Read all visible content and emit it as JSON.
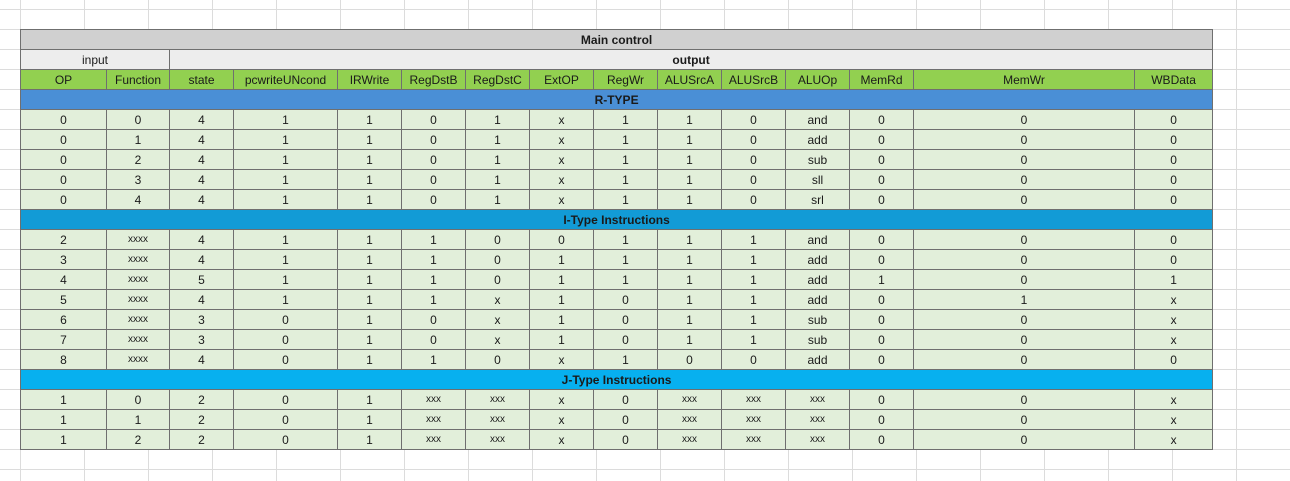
{
  "title": "Main control",
  "groups": {
    "input": "input",
    "output": "output"
  },
  "columns": [
    "OP",
    "Function",
    "state",
    "pcwriteUNcond",
    "IRWrite",
    "RegDstB",
    "RegDstC",
    "ExtOP",
    "RegWr",
    "ALUSrcA",
    "ALUSrcB",
    "ALUOp",
    "MemRd",
    "MemWr",
    "WBData"
  ],
  "sections": [
    {
      "name": "R-TYPE",
      "rows": [
        [
          "0",
          "0",
          "4",
          "1",
          "1",
          "0",
          "1",
          "x",
          "1",
          "1",
          "0",
          "and",
          "0",
          "0",
          "0"
        ],
        [
          "0",
          "1",
          "4",
          "1",
          "1",
          "0",
          "1",
          "x",
          "1",
          "1",
          "0",
          "add",
          "0",
          "0",
          "0"
        ],
        [
          "0",
          "2",
          "4",
          "1",
          "1",
          "0",
          "1",
          "x",
          "1",
          "1",
          "0",
          "sub",
          "0",
          "0",
          "0"
        ],
        [
          "0",
          "3",
          "4",
          "1",
          "1",
          "0",
          "1",
          "x",
          "1",
          "1",
          "0",
          "sll",
          "0",
          "0",
          "0"
        ],
        [
          "0",
          "4",
          "4",
          "1",
          "1",
          "0",
          "1",
          "x",
          "1",
          "1",
          "0",
          "srl",
          "0",
          "0",
          "0"
        ]
      ]
    },
    {
      "name": "I-Type Instructions",
      "rows": [
        [
          "2",
          "xxxx",
          "4",
          "1",
          "1",
          "1",
          "0",
          "0",
          "1",
          "1",
          "1",
          "and",
          "0",
          "0",
          "0"
        ],
        [
          "3",
          "xxxx",
          "4",
          "1",
          "1",
          "1",
          "0",
          "1",
          "1",
          "1",
          "1",
          "add",
          "0",
          "0",
          "0"
        ],
        [
          "4",
          "xxxx",
          "5",
          "1",
          "1",
          "1",
          "0",
          "1",
          "1",
          "1",
          "1",
          "add",
          "1",
          "0",
          "1"
        ],
        [
          "5",
          "xxxx",
          "4",
          "1",
          "1",
          "1",
          "x",
          "1",
          "0",
          "1",
          "1",
          "add",
          "0",
          "1",
          "x"
        ],
        [
          "6",
          "xxxx",
          "3",
          "0",
          "1",
          "0",
          "x",
          "1",
          "0",
          "1",
          "1",
          "sub",
          "0",
          "0",
          "x"
        ],
        [
          "7",
          "xxxx",
          "3",
          "0",
          "1",
          "0",
          "x",
          "1",
          "0",
          "1",
          "1",
          "sub",
          "0",
          "0",
          "x"
        ],
        [
          "8",
          "xxxx",
          "4",
          "0",
          "1",
          "1",
          "0",
          "x",
          "1",
          "0",
          "0",
          "add",
          "0",
          "0",
          "0"
        ]
      ]
    },
    {
      "name": "J-Type Instructions",
      "rows": [
        [
          "1",
          "0",
          "2",
          "0",
          "1",
          "xxx",
          "xxx",
          "x",
          "0",
          "xxx",
          "xxx",
          "xxx",
          "0",
          "0",
          "x"
        ],
        [
          "1",
          "1",
          "2",
          "0",
          "1",
          "xxx",
          "xxx",
          "x",
          "0",
          "xxx",
          "xxx",
          "xxx",
          "0",
          "0",
          "x"
        ],
        [
          "1",
          "2",
          "2",
          "0",
          "1",
          "xxx",
          "xxx",
          "x",
          "0",
          "xxx",
          "xxx",
          "xxx",
          "0",
          "0",
          "x"
        ]
      ]
    }
  ]
}
